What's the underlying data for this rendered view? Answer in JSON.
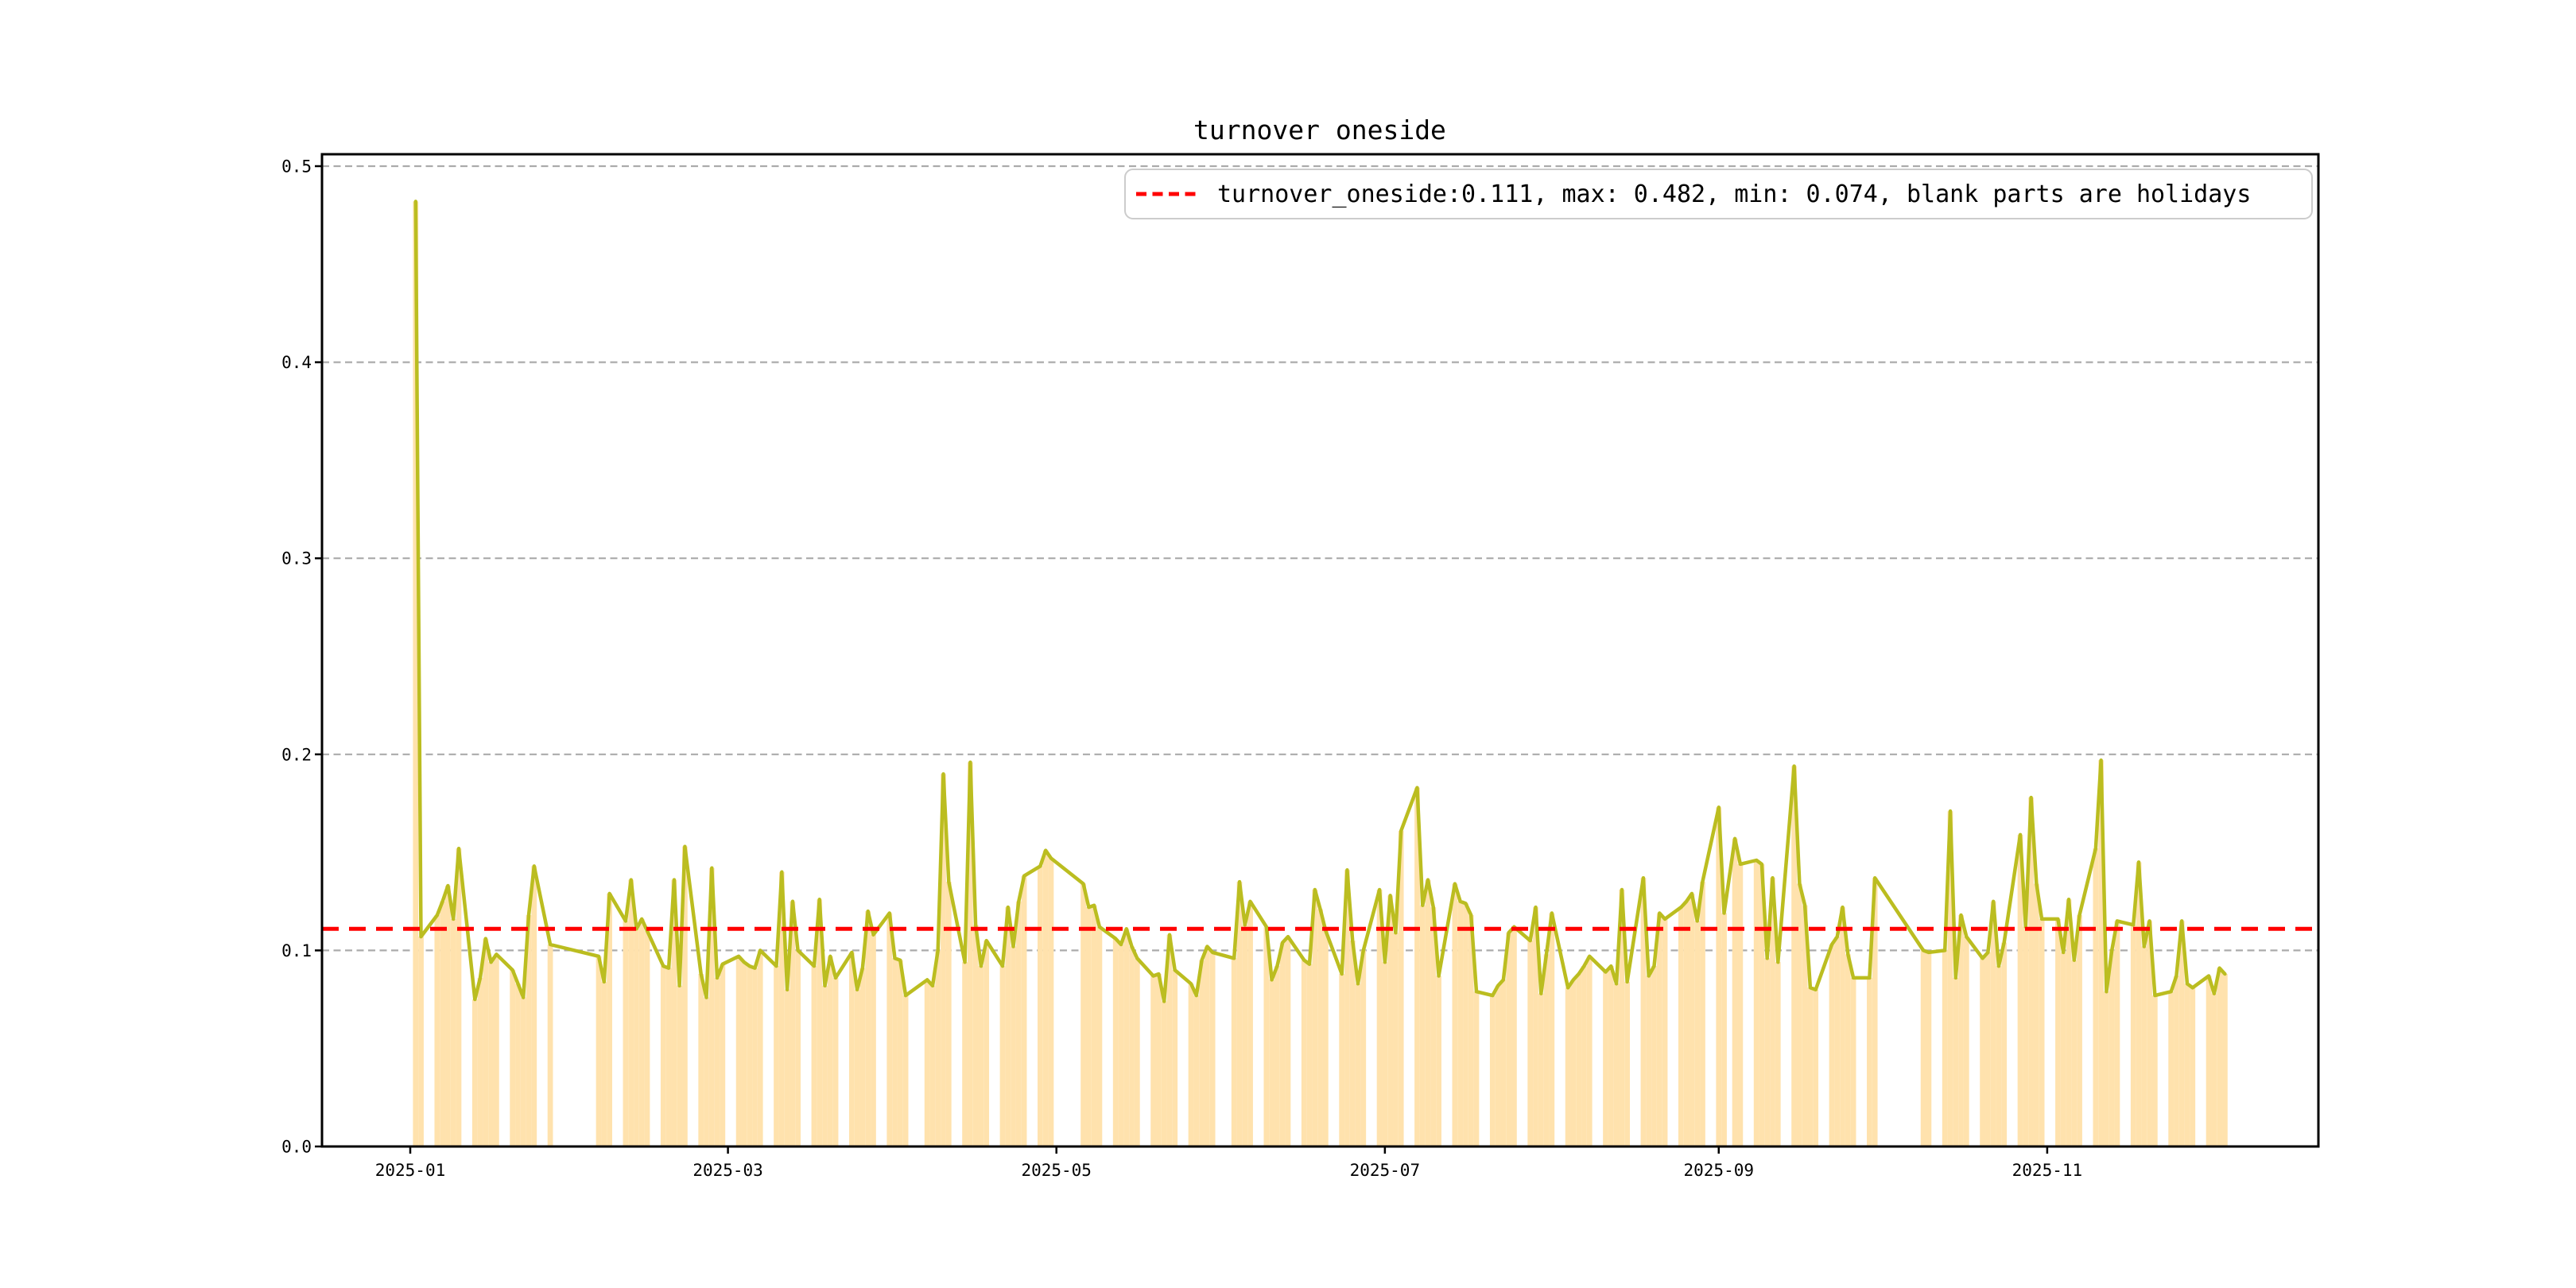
{
  "title": "turnover oneside",
  "legend": {
    "label": "turnover_oneside:0.111, max: 0.482, min: 0.074, blank parts are holidays",
    "marker": "red-dashed-line",
    "position": "upper right"
  },
  "stats": {
    "mean": 0.111,
    "max": 0.482,
    "min": 0.074
  },
  "colors": {
    "line": "#bbbd20",
    "bar": "#ffe2ad",
    "mean_line": "#ff0000",
    "grid": "#ababab",
    "axis": "#000000",
    "legend_border": "#cccccc",
    "background": "#ffffff"
  },
  "axes": {
    "y_tick_labels": [
      "0.0",
      "0.1",
      "0.2",
      "0.3",
      "0.4",
      "0.5"
    ],
    "y_tick_values": [
      0.0,
      0.1,
      0.2,
      0.3,
      0.4,
      0.5
    ],
    "x_tick_labels": [
      "2025-01",
      "2025-03",
      "2025-05",
      "2025-07",
      "2025-09",
      "2025-11"
    ],
    "grid": "horizontal-dashed"
  },
  "chart_data": {
    "type": "bar+line",
    "title": "turnover oneside",
    "xlabel": "",
    "ylabel": "",
    "ylim": [
      0,
      0.506
    ],
    "mean_line": 0.111,
    "legend_position": "upper right",
    "note": "blank parts are holidays",
    "series": [
      {
        "name": "turnover_oneside",
        "dates": [
          "2025-01-02",
          "2025-01-03",
          "2025-01-06",
          "2025-01-07",
          "2025-01-08",
          "2025-01-09",
          "2025-01-10",
          "2025-01-13",
          "2025-01-14",
          "2025-01-15",
          "2025-01-16",
          "2025-01-17",
          "2025-01-20",
          "2025-01-21",
          "2025-01-22",
          "2025-01-23",
          "2025-01-24",
          "2025-01-27",
          "2025-02-05",
          "2025-02-06",
          "2025-02-07",
          "2025-02-10",
          "2025-02-11",
          "2025-02-12",
          "2025-02-13",
          "2025-02-14",
          "2025-02-17",
          "2025-02-18",
          "2025-02-19",
          "2025-02-20",
          "2025-02-21",
          "2025-02-24",
          "2025-02-25",
          "2025-02-26",
          "2025-02-27",
          "2025-02-28",
          "2025-03-03",
          "2025-03-04",
          "2025-03-05",
          "2025-03-06",
          "2025-03-07",
          "2025-03-10",
          "2025-03-11",
          "2025-03-12",
          "2025-03-13",
          "2025-03-14",
          "2025-03-17",
          "2025-03-18",
          "2025-03-19",
          "2025-03-20",
          "2025-03-21",
          "2025-03-24",
          "2025-03-25",
          "2025-03-26",
          "2025-03-27",
          "2025-03-28",
          "2025-03-31",
          "2025-04-01",
          "2025-04-02",
          "2025-04-03",
          "2025-04-07",
          "2025-04-08",
          "2025-04-09",
          "2025-04-10",
          "2025-04-11",
          "2025-04-14",
          "2025-04-15",
          "2025-04-16",
          "2025-04-17",
          "2025-04-18",
          "2025-04-21",
          "2025-04-22",
          "2025-04-23",
          "2025-04-24",
          "2025-04-25",
          "2025-04-28",
          "2025-04-29",
          "2025-04-30",
          "2025-05-06",
          "2025-05-07",
          "2025-05-08",
          "2025-05-09",
          "2025-05-12",
          "2025-05-13",
          "2025-05-14",
          "2025-05-15",
          "2025-05-16",
          "2025-05-19",
          "2025-05-20",
          "2025-05-21",
          "2025-05-22",
          "2025-05-23",
          "2025-05-26",
          "2025-05-27",
          "2025-05-28",
          "2025-05-29",
          "2025-05-30",
          "2025-06-03",
          "2025-06-04",
          "2025-06-05",
          "2025-06-06",
          "2025-06-09",
          "2025-06-10",
          "2025-06-11",
          "2025-06-12",
          "2025-06-13",
          "2025-06-16",
          "2025-06-17",
          "2025-06-18",
          "2025-06-19",
          "2025-06-20",
          "2025-06-23",
          "2025-06-24",
          "2025-06-25",
          "2025-06-26",
          "2025-06-27",
          "2025-06-30",
          "2025-07-01",
          "2025-07-02",
          "2025-07-03",
          "2025-07-04",
          "2025-07-07",
          "2025-07-08",
          "2025-07-09",
          "2025-07-10",
          "2025-07-11",
          "2025-07-14",
          "2025-07-15",
          "2025-07-16",
          "2025-07-17",
          "2025-07-18",
          "2025-07-21",
          "2025-07-22",
          "2025-07-23",
          "2025-07-24",
          "2025-07-25",
          "2025-07-28",
          "2025-07-29",
          "2025-07-30",
          "2025-07-31",
          "2025-08-01",
          "2025-08-04",
          "2025-08-05",
          "2025-08-06",
          "2025-08-07",
          "2025-08-08",
          "2025-08-11",
          "2025-08-12",
          "2025-08-13",
          "2025-08-14",
          "2025-08-15",
          "2025-08-18",
          "2025-08-19",
          "2025-08-20",
          "2025-08-21",
          "2025-08-22",
          "2025-08-25",
          "2025-08-26",
          "2025-08-27",
          "2025-08-28",
          "2025-08-29",
          "2025-09-01",
          "2025-09-02",
          "2025-09-04",
          "2025-09-05",
          "2025-09-08",
          "2025-09-09",
          "2025-09-10",
          "2025-09-11",
          "2025-09-12",
          "2025-09-15",
          "2025-09-16",
          "2025-09-17",
          "2025-09-18",
          "2025-09-19",
          "2025-09-22",
          "2025-09-23",
          "2025-09-24",
          "2025-09-25",
          "2025-09-26",
          "2025-09-29",
          "2025-09-30",
          "2025-10-09",
          "2025-10-10",
          "2025-10-13",
          "2025-10-14",
          "2025-10-15",
          "2025-10-16",
          "2025-10-17",
          "2025-10-20",
          "2025-10-21",
          "2025-10-22",
          "2025-10-23",
          "2025-10-24",
          "2025-10-27",
          "2025-10-28",
          "2025-10-29",
          "2025-10-30",
          "2025-10-31",
          "2025-11-03",
          "2025-11-04",
          "2025-11-05",
          "2025-11-06",
          "2025-11-07",
          "2025-11-10",
          "2025-11-11",
          "2025-11-12",
          "2025-11-13",
          "2025-11-14",
          "2025-11-17",
          "2025-11-18",
          "2025-11-19",
          "2025-11-20",
          "2025-11-21",
          "2025-11-24",
          "2025-11-25",
          "2025-11-26",
          "2025-11-27",
          "2025-11-28",
          "2025-12-01",
          "2025-12-02",
          "2025-12-03",
          "2025-12-04"
        ],
        "values": [
          0.482,
          0.107,
          0.118,
          0.125,
          0.133,
          0.116,
          0.152,
          0.075,
          0.086,
          0.106,
          0.094,
          0.098,
          0.09,
          0.083,
          0.076,
          0.118,
          0.143,
          0.103,
          0.097,
          0.084,
          0.129,
          0.115,
          0.136,
          0.111,
          0.116,
          0.11,
          0.092,
          0.091,
          0.136,
          0.082,
          0.153,
          0.088,
          0.076,
          0.142,
          0.086,
          0.093,
          0.097,
          0.094,
          0.092,
          0.091,
          0.1,
          0.092,
          0.14,
          0.08,
          0.125,
          0.1,
          0.092,
          0.126,
          0.082,
          0.097,
          0.086,
          0.099,
          0.08,
          0.091,
          0.12,
          0.108,
          0.119,
          0.096,
          0.095,
          0.077,
          0.085,
          0.082,
          0.1,
          0.19,
          0.135,
          0.094,
          0.196,
          0.113,
          0.092,
          0.105,
          0.092,
          0.122,
          0.102,
          0.125,
          0.138,
          0.143,
          0.151,
          0.147,
          0.134,
          0.122,
          0.123,
          0.112,
          0.106,
          0.103,
          0.111,
          0.102,
          0.096,
          0.087,
          0.088,
          0.074,
          0.108,
          0.09,
          0.083,
          0.077,
          0.095,
          0.102,
          0.099,
          0.096,
          0.135,
          0.113,
          0.125,
          0.112,
          0.085,
          0.092,
          0.104,
          0.107,
          0.095,
          0.093,
          0.131,
          0.121,
          0.11,
          0.088,
          0.141,
          0.105,
          0.083,
          0.1,
          0.131,
          0.094,
          0.128,
          0.109,
          0.161,
          0.183,
          0.123,
          0.136,
          0.122,
          0.087,
          0.134,
          0.125,
          0.124,
          0.118,
          0.079,
          0.077,
          0.082,
          0.085,
          0.109,
          0.112,
          0.105,
          0.122,
          0.078,
          0.098,
          0.119,
          0.081,
          0.085,
          0.088,
          0.092,
          0.097,
          0.089,
          0.092,
          0.083,
          0.131,
          0.084,
          0.137,
          0.087,
          0.092,
          0.119,
          0.116,
          0.122,
          0.125,
          0.129,
          0.115,
          0.135,
          0.173,
          0.119,
          0.157,
          0.144,
          0.146,
          0.144,
          0.096,
          0.137,
          0.094,
          0.194,
          0.134,
          0.123,
          0.081,
          0.08,
          0.103,
          0.107,
          0.122,
          0.098,
          0.086,
          0.086,
          0.137,
          0.1,
          0.099,
          0.1,
          0.171,
          0.086,
          0.118,
          0.107,
          0.096,
          0.099,
          0.125,
          0.092,
          0.104,
          0.159,
          0.112,
          0.178,
          0.134,
          0.116,
          0.116,
          0.099,
          0.126,
          0.095,
          0.118,
          0.152,
          0.197,
          0.079,
          0.1,
          0.115,
          0.113,
          0.145,
          0.102,
          0.115,
          0.077,
          0.079,
          0.087,
          0.115,
          0.083,
          0.081,
          0.087,
          0.078,
          0.091,
          0.088
        ]
      }
    ]
  }
}
